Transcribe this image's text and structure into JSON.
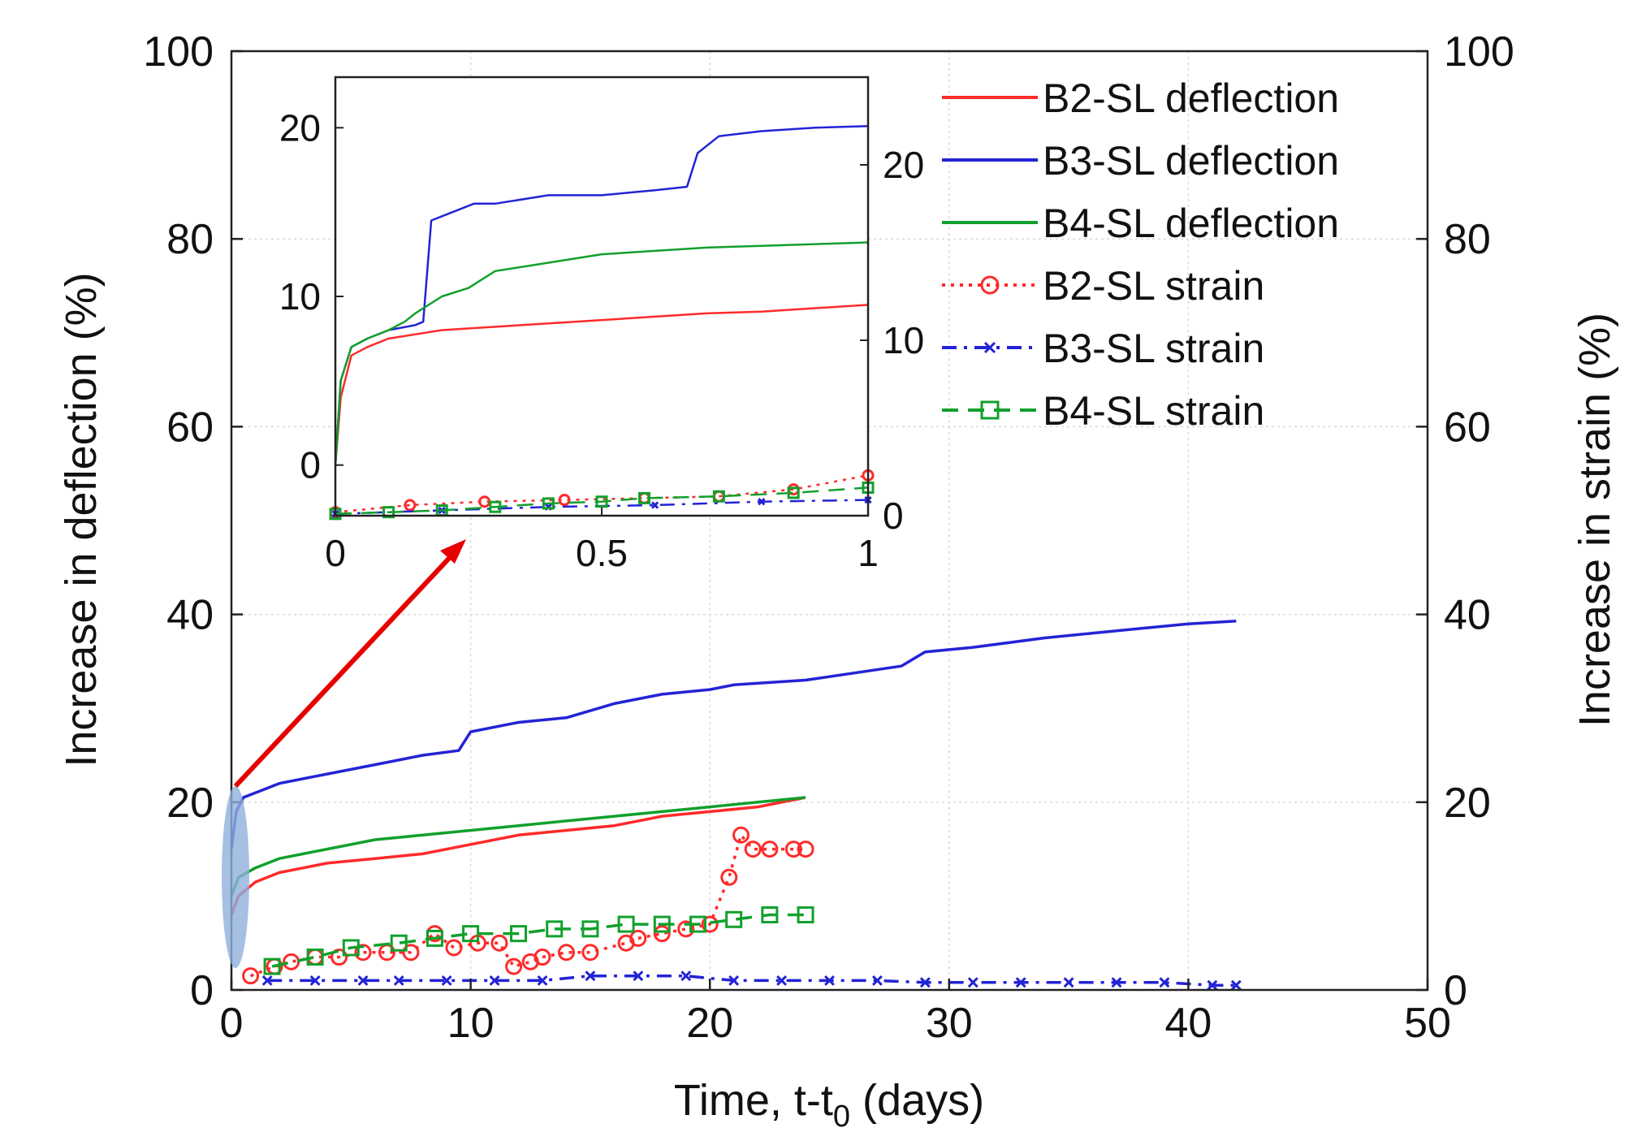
{
  "chart_data": {
    "type": "line",
    "xlabel": "Time, t-t",
    "xlabel_subscript": "0",
    "xlabel_suffix": " (days)",
    "ylabel_left": "Increase in deflection (%)",
    "ylabel_right": "Increase in strain (%)",
    "xlim": [
      0,
      50
    ],
    "ylim_left": [
      0,
      100
    ],
    "ylim_right": [
      0,
      100
    ],
    "x_ticks": [
      "0",
      "10",
      "20",
      "30",
      "40",
      "50"
    ],
    "y_ticks_left": [
      "0",
      "20",
      "40",
      "60",
      "80",
      "100"
    ],
    "y_ticks_right": [
      "0",
      "20",
      "40",
      "60",
      "80",
      "100"
    ],
    "grid": true,
    "legend": {
      "position": "top-right",
      "entries": [
        {
          "label": "B2-SL deflection",
          "color": "#ff2a2a",
          "style": "solid"
        },
        {
          "label": "B3-SL deflection",
          "color": "#2323d6",
          "style": "solid"
        },
        {
          "label": "B4-SL deflection",
          "color": "#12a02c",
          "style": "solid"
        },
        {
          "label": "B2-SL strain",
          "color": "#ff2a2a",
          "style": "dotted",
          "marker": "circle"
        },
        {
          "label": "B3-SL strain",
          "color": "#2323d6",
          "style": "dashdot",
          "marker": "x"
        },
        {
          "label": "B4-SL strain",
          "color": "#12a02c",
          "style": "dashed",
          "marker": "square"
        }
      ]
    },
    "series": [
      {
        "name": "B2-SL deflection",
        "axis": "left",
        "x": [
          0,
          0.3,
          1,
          2,
          4,
          6,
          8,
          10,
          12,
          14,
          16,
          18,
          20,
          22,
          24
        ],
        "y": [
          8,
          10,
          11.5,
          12.5,
          13.5,
          14,
          14.5,
          15.5,
          16.5,
          17,
          17.5,
          18.5,
          19,
          19.5,
          20.5
        ]
      },
      {
        "name": "B3-SL deflection",
        "axis": "left",
        "x": [
          0,
          0.2,
          0.5,
          1,
          2,
          4,
          6,
          8,
          9.5,
          10,
          12,
          14,
          16,
          18,
          20,
          21,
          24,
          28,
          29,
          31,
          34,
          38,
          40,
          42
        ],
        "y": [
          15,
          19,
          20.5,
          21,
          22,
          23,
          24,
          25,
          25.5,
          27.5,
          28.5,
          29,
          30.5,
          31.5,
          32,
          32.5,
          33,
          34.5,
          36,
          36.5,
          37.5,
          38.5,
          39,
          39.3
        ]
      },
      {
        "name": "B4-SL deflection",
        "axis": "left",
        "x": [
          0,
          0.3,
          1,
          2,
          4,
          6,
          8,
          10,
          12,
          14,
          16,
          18,
          20,
          22,
          24
        ],
        "y": [
          10,
          12,
          13,
          14,
          15,
          16,
          16.5,
          17,
          17.5,
          18,
          18.5,
          19,
          19.5,
          20,
          20.5
        ]
      },
      {
        "name": "B2-SL strain",
        "axis": "right",
        "x": [
          0.8,
          1.8,
          2.5,
          3.5,
          4.5,
          5.5,
          6.5,
          7.5,
          8.5,
          9.3,
          10.3,
          11.2,
          11.8,
          12.5,
          13,
          14,
          15,
          16.5,
          17,
          18,
          19,
          20,
          20.8,
          21.3,
          21.8,
          22.5,
          23.5,
          24
        ],
        "y": [
          1.5,
          2.5,
          3,
          3.5,
          3.5,
          4,
          4,
          4,
          6,
          4.5,
          5,
          5,
          2.5,
          3,
          3.5,
          4,
          4,
          5,
          5.5,
          6,
          6.5,
          7,
          12,
          16.5,
          15,
          15,
          15,
          15
        ]
      },
      {
        "name": "B3-SL strain",
        "axis": "right",
        "x": [
          1.5,
          3.5,
          5.5,
          7,
          9,
          11,
          13,
          15,
          17,
          19,
          21,
          23,
          25,
          27,
          29,
          31,
          33,
          35,
          37,
          39,
          41,
          42
        ],
        "y": [
          1,
          1,
          1,
          1,
          1,
          1,
          1,
          1.5,
          1.5,
          1.5,
          1,
          1,
          1,
          1,
          0.8,
          0.8,
          0.8,
          0.8,
          0.8,
          0.8,
          0.5,
          0.5
        ]
      },
      {
        "name": "B4-SL strain",
        "axis": "right",
        "x": [
          1.7,
          3.5,
          5,
          7,
          8.5,
          10,
          12,
          13.5,
          15,
          16.5,
          18,
          19.5,
          21,
          22.5,
          24
        ],
        "y": [
          2.5,
          3.5,
          4.5,
          5,
          5.5,
          6,
          6,
          6.5,
          6.5,
          7,
          7,
          7,
          7.5,
          8,
          8
        ]
      }
    ],
    "inset": {
      "xlim": [
        0,
        1
      ],
      "ylim_left": [
        -3,
        23
      ],
      "ylim_right": [
        0,
        25
      ],
      "x_ticks": [
        "0",
        "0.5",
        "1"
      ],
      "y_ticks_left": [
        "0",
        "10",
        "20"
      ],
      "y_ticks_right": [
        "0",
        "10",
        "20"
      ],
      "series": [
        {
          "name": "B2-SL deflection",
          "axis": "left",
          "x": [
            0,
            0.01,
            0.03,
            0.06,
            0.1,
            0.2,
            0.3,
            0.4,
            0.5,
            0.6,
            0.7,
            0.8,
            0.9,
            1.0
          ],
          "y": [
            0,
            4,
            6.5,
            7,
            7.5,
            8,
            8.2,
            8.4,
            8.6,
            8.8,
            9,
            9.1,
            9.3,
            9.5
          ]
        },
        {
          "name": "B3-SL deflection",
          "axis": "left",
          "x": [
            0,
            0.01,
            0.03,
            0.06,
            0.1,
            0.15,
            0.165,
            0.18,
            0.22,
            0.26,
            0.3,
            0.4,
            0.5,
            0.6,
            0.66,
            0.68,
            0.72,
            0.8,
            0.9,
            1.0
          ],
          "y": [
            0,
            5,
            7,
            7.5,
            8,
            8.3,
            8.5,
            14.5,
            15,
            15.5,
            15.5,
            16,
            16,
            16.3,
            16.5,
            18.5,
            19.5,
            19.8,
            20,
            20.1
          ]
        },
        {
          "name": "B4-SL deflection",
          "axis": "left",
          "x": [
            0,
            0.01,
            0.03,
            0.06,
            0.1,
            0.13,
            0.15,
            0.2,
            0.25,
            0.3,
            0.4,
            0.5,
            0.6,
            0.7,
            0.8,
            0.9,
            1.0
          ],
          "y": [
            0,
            5,
            7,
            7.5,
            8,
            8.5,
            9,
            10,
            10.5,
            11.5,
            12,
            12.5,
            12.7,
            12.9,
            13,
            13.1,
            13.2
          ]
        },
        {
          "name": "B2-SL strain",
          "axis": "right",
          "x": [
            0,
            0.14,
            0.28,
            0.43,
            0.58,
            0.72,
            0.86,
            1.0
          ],
          "y": [
            0.2,
            0.6,
            0.8,
            0.9,
            1.0,
            1.1,
            1.5,
            2.3
          ]
        },
        {
          "name": "B3-SL strain",
          "axis": "right",
          "x": [
            0,
            0.2,
            0.4,
            0.6,
            0.8,
            1.0
          ],
          "y": [
            0.1,
            0.3,
            0.5,
            0.6,
            0.8,
            0.9
          ]
        },
        {
          "name": "B4-SL strain",
          "axis": "right",
          "x": [
            0,
            0.1,
            0.2,
            0.3,
            0.4,
            0.5,
            0.58,
            0.72,
            0.86,
            1.0
          ],
          "y": [
            0.1,
            0.2,
            0.3,
            0.5,
            0.7,
            0.8,
            1.0,
            1.1,
            1.3,
            1.6
          ]
        }
      ]
    }
  }
}
